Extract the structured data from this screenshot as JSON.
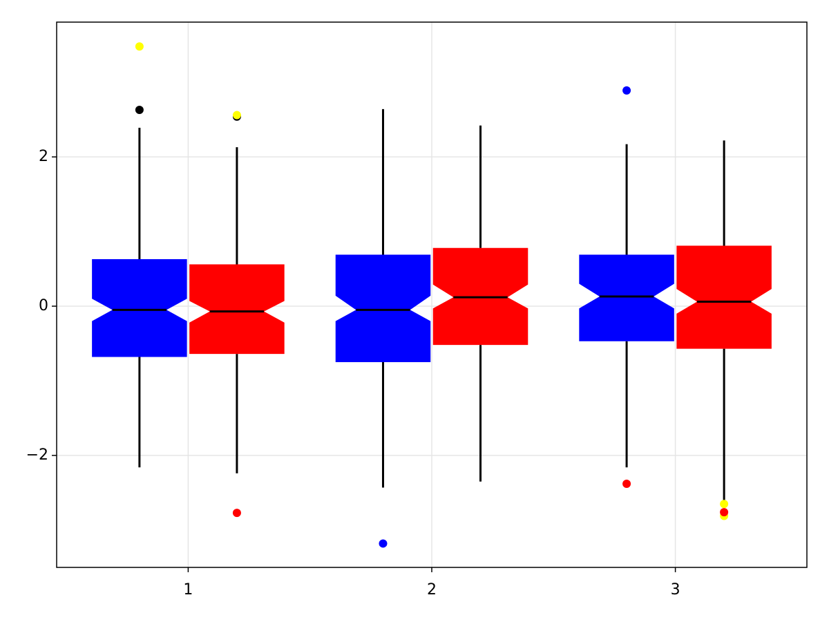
{
  "chart_data": {
    "type": "boxplot",
    "xlim": [
      0.46,
      3.54
    ],
    "ylim": [
      -3.5,
      3.806
    ],
    "xticks": [
      1,
      2,
      3
    ],
    "yticks": [
      {
        "value": -2,
        "label": "−2"
      },
      0,
      2
    ],
    "grid": true,
    "boxes": [
      {
        "x": 0.8,
        "color": "#0000ff",
        "q1": -0.68,
        "median": -0.05,
        "q3": 0.63,
        "notch_low": -0.2,
        "notch_high": 0.1,
        "whisker_low": -2.16,
        "whisker_high": 2.39,
        "outliers": [
          {
            "value": 3.48,
            "color": "#ffff00"
          },
          {
            "value": 2.63,
            "color": "#000000"
          }
        ]
      },
      {
        "x": 1.2,
        "color": "#ff0000",
        "q1": -0.64,
        "median": -0.07,
        "q3": 0.56,
        "notch_low": -0.22,
        "notch_high": 0.07,
        "whisker_low": -2.24,
        "whisker_high": 2.13,
        "outliers": [
          {
            "value": 2.54,
            "color": "#000000"
          },
          {
            "value": 2.56,
            "color": "#ffff00"
          },
          {
            "value": -2.77,
            "color": "#ff0000"
          }
        ]
      },
      {
        "x": 1.8,
        "color": "#0000ff",
        "q1": -0.75,
        "median": -0.05,
        "q3": 0.69,
        "notch_low": -0.2,
        "notch_high": 0.14,
        "whisker_low": -2.43,
        "whisker_high": 2.64,
        "outliers": [
          {
            "value": -3.18,
            "color": "#0000ff"
          }
        ]
      },
      {
        "x": 2.2,
        "color": "#ff0000",
        "q1": -0.52,
        "median": 0.12,
        "q3": 0.78,
        "notch_low": -0.03,
        "notch_high": 0.29,
        "whisker_low": -2.35,
        "whisker_high": 2.42,
        "outliers": []
      },
      {
        "x": 2.8,
        "color": "#0000ff",
        "q1": -0.47,
        "median": 0.13,
        "q3": 0.69,
        "notch_low": -0.03,
        "notch_high": 0.3,
        "whisker_low": -2.16,
        "whisker_high": 2.17,
        "outliers": [
          {
            "value": 2.89,
            "color": "#0000ff"
          },
          {
            "value": -2.38,
            "color": "#ff0000"
          }
        ]
      },
      {
        "x": 3.2,
        "color": "#ff0000",
        "q1": -0.57,
        "median": 0.06,
        "q3": 0.81,
        "notch_low": -0.1,
        "notch_high": 0.23,
        "whisker_low": -2.62,
        "whisker_high": 2.22,
        "outliers": [
          {
            "value": -2.65,
            "color": "#ffff00"
          },
          {
            "value": -2.81,
            "color": "#ffff00"
          },
          {
            "value": -2.76,
            "color": "#ff0000"
          }
        ]
      }
    ]
  }
}
